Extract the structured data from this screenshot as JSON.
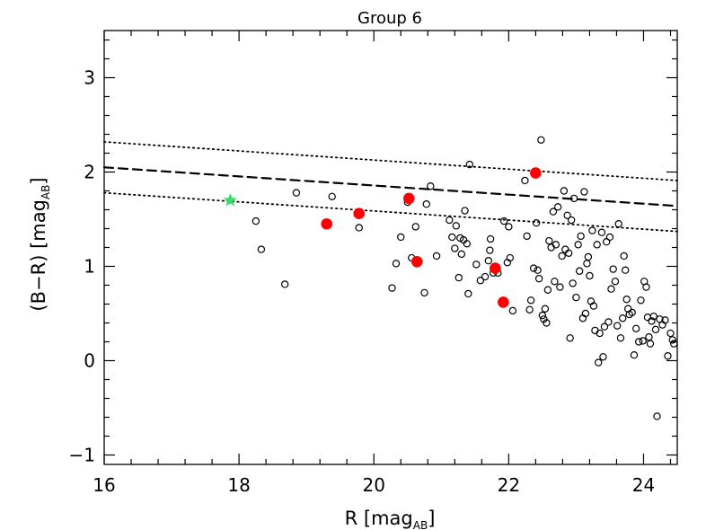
{
  "chart_data": {
    "type": "scatter",
    "title": "Group   6",
    "xlabel_main": "R  [mag",
    "xlabel_sub": "AB",
    "xlabel_close": "]",
    "ylabel_main": "(B−R)  [mag",
    "ylabel_sub": "AB",
    "ylabel_close": "]",
    "xlim": [
      16,
      24.5
    ],
    "ylim": [
      -1.1,
      3.5
    ],
    "x_ticks": [
      16,
      18,
      20,
      22,
      24
    ],
    "x_tick_labels": [
      "16",
      "18",
      "20",
      "22",
      "24"
    ],
    "y_ticks": [
      -1,
      0,
      1,
      2,
      3
    ],
    "y_tick_labels": [
      "−1",
      "0",
      "1",
      "2",
      "3"
    ],
    "grid": false,
    "lines": [
      {
        "name": "red-sequence-fit",
        "style": "dashed",
        "x": [
          16,
          24.5
        ],
        "y": [
          2.05,
          1.64
        ]
      },
      {
        "name": "upper-bound",
        "style": "dotted",
        "x": [
          16,
          24.5
        ],
        "y": [
          2.32,
          1.91
        ]
      },
      {
        "name": "lower-bound",
        "style": "dotted",
        "x": [
          16,
          24.5
        ],
        "y": [
          1.78,
          1.37
        ]
      }
    ],
    "bcg": {
      "name": "brightest-galaxy",
      "marker": "star",
      "color": "#33dd66",
      "x": 17.87,
      "y": 1.7
    },
    "members": {
      "name": "group-members",
      "marker": "filled-circle",
      "color": "#ff0000",
      "points": [
        [
          19.3,
          1.45
        ],
        [
          19.78,
          1.56
        ],
        [
          20.52,
          1.72
        ],
        [
          20.64,
          1.05
        ],
        [
          21.8,
          0.98
        ],
        [
          21.92,
          0.62
        ],
        [
          22.4,
          1.99
        ]
      ]
    },
    "field": {
      "name": "field-galaxies",
      "marker": "open-circle",
      "color": "#000000",
      "points": [
        [
          18.25,
          1.48
        ],
        [
          18.33,
          1.18
        ],
        [
          18.68,
          0.81
        ],
        [
          18.85,
          1.78
        ],
        [
          19.38,
          1.74
        ],
        [
          19.78,
          1.41
        ],
        [
          20.27,
          0.77
        ],
        [
          20.33,
          1.03
        ],
        [
          20.4,
          1.31
        ],
        [
          20.5,
          1.68
        ],
        [
          20.56,
          1.09
        ],
        [
          20.62,
          1.42
        ],
        [
          20.75,
          0.72
        ],
        [
          20.78,
          1.66
        ],
        [
          20.84,
          1.85
        ],
        [
          20.93,
          1.11
        ],
        [
          21.12,
          1.49
        ],
        [
          21.16,
          1.31
        ],
        [
          21.2,
          1.19
        ],
        [
          21.22,
          1.43
        ],
        [
          21.26,
          0.88
        ],
        [
          21.28,
          1.3
        ],
        [
          21.3,
          1.13
        ],
        [
          21.33,
          1.28
        ],
        [
          21.35,
          1.59
        ],
        [
          21.38,
          1.24
        ],
        [
          21.4,
          0.71
        ],
        [
          21.42,
          2.08
        ],
        [
          21.52,
          1.02
        ],
        [
          21.58,
          0.85
        ],
        [
          21.65,
          0.89
        ],
        [
          21.7,
          1.06
        ],
        [
          21.72,
          1.17
        ],
        [
          21.73,
          1.29
        ],
        [
          21.77,
          0.93
        ],
        [
          21.84,
          0.93
        ],
        [
          21.93,
          1.48
        ],
        [
          21.98,
          1.04
        ],
        [
          22.0,
          1.42
        ],
        [
          22.02,
          1.09
        ],
        [
          22.06,
          0.53
        ],
        [
          22.24,
          1.91
        ],
        [
          22.27,
          1.32
        ],
        [
          22.31,
          0.54
        ],
        [
          22.33,
          0.64
        ],
        [
          22.37,
          0.98
        ],
        [
          22.41,
          1.46
        ],
        [
          22.43,
          0.96
        ],
        [
          22.45,
          0.87
        ],
        [
          22.48,
          2.34
        ],
        [
          22.5,
          0.48
        ],
        [
          22.52,
          0.44
        ],
        [
          22.54,
          0.55
        ],
        [
          22.56,
          0.4
        ],
        [
          22.58,
          0.75
        ],
        [
          22.6,
          1.27
        ],
        [
          22.63,
          1.2
        ],
        [
          22.66,
          1.58
        ],
        [
          22.68,
          0.84
        ],
        [
          22.7,
          1.23
        ],
        [
          22.73,
          1.63
        ],
        [
          22.76,
          0.78
        ],
        [
          22.79,
          1.11
        ],
        [
          22.82,
          1.8
        ],
        [
          22.84,
          1.18
        ],
        [
          22.87,
          1.54
        ],
        [
          22.89,
          1.14
        ],
        [
          22.91,
          0.24
        ],
        [
          22.93,
          1.49
        ],
        [
          22.95,
          0.82
        ],
        [
          22.97,
          1.72
        ],
        [
          23.0,
          0.67
        ],
        [
          23.03,
          1.23
        ],
        [
          23.05,
          0.95
        ],
        [
          23.07,
          1.32
        ],
        [
          23.1,
          0.45
        ],
        [
          23.12,
          1.79
        ],
        [
          23.14,
          0.5
        ],
        [
          23.16,
          1.03
        ],
        [
          23.18,
          1.1
        ],
        [
          23.2,
          0.9
        ],
        [
          23.22,
          0.63
        ],
        [
          23.24,
          1.38
        ],
        [
          23.26,
          0.58
        ],
        [
          23.28,
          0.32
        ],
        [
          23.31,
          1.23
        ],
        [
          23.33,
          -0.02
        ],
        [
          23.35,
          0.29
        ],
        [
          23.38,
          1.36
        ],
        [
          23.4,
          0.04
        ],
        [
          23.42,
          0.36
        ],
        [
          23.45,
          1.26
        ],
        [
          23.48,
          0.41
        ],
        [
          23.5,
          1.31
        ],
        [
          23.52,
          0.76
        ],
        [
          23.55,
          0.97
        ],
        [
          23.58,
          0.84
        ],
        [
          23.61,
          0.37
        ],
        [
          23.63,
          1.45
        ],
        [
          23.66,
          0.24
        ],
        [
          23.69,
          0.45
        ],
        [
          23.71,
          1.11
        ],
        [
          23.73,
          0.96
        ],
        [
          23.75,
          0.65
        ],
        [
          23.77,
          0.55
        ],
        [
          23.79,
          0.49
        ],
        [
          23.83,
          0.51
        ],
        [
          23.86,
          0.06
        ],
        [
          23.89,
          0.34
        ],
        [
          23.93,
          0.2
        ],
        [
          23.96,
          0.64
        ],
        [
          23.99,
          0.21
        ],
        [
          24.01,
          0.84
        ],
        [
          24.04,
          0.78
        ],
        [
          24.06,
          0.46
        ],
        [
          24.08,
          0.25
        ],
        [
          24.1,
          0.18
        ],
        [
          24.12,
          0.42
        ],
        [
          24.15,
          0.47
        ],
        [
          24.18,
          0.33
        ],
        [
          24.2,
          -0.59
        ],
        [
          24.24,
          0.44
        ],
        [
          24.28,
          0.38
        ],
        [
          24.32,
          0.43
        ],
        [
          24.36,
          0.05
        ],
        [
          24.4,
          0.29
        ],
        [
          24.43,
          0.22
        ],
        [
          24.45,
          0.18
        ]
      ]
    }
  }
}
